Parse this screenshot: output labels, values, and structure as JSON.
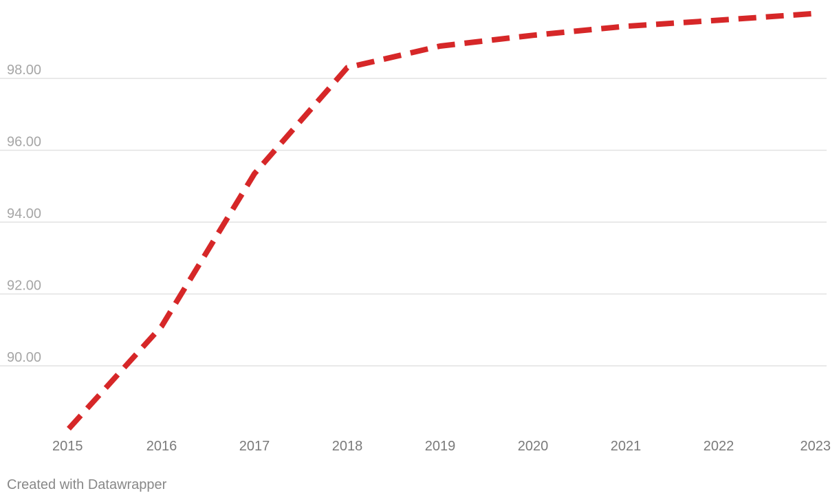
{
  "chart_data": {
    "type": "line",
    "x": [
      "2015",
      "2016",
      "2017",
      "2018",
      "2019",
      "2020",
      "2021",
      "2022",
      "2023"
    ],
    "series": [
      {
        "values": [
          88.25,
          91.1,
          95.35,
          98.3,
          98.9,
          99.2,
          99.45,
          99.62,
          99.8
        ],
        "color": "#d62728",
        "line_style": "dashed"
      }
    ],
    "y_ticks": [
      90,
      92,
      94,
      96,
      98
    ],
    "y_tick_labels": [
      "90.00",
      "92.00",
      "94.00",
      "96.00",
      "98.00"
    ],
    "x_tick_labels": [
      "2015",
      "2016",
      "2017",
      "2018",
      "2019",
      "2020",
      "2021",
      "2022",
      "2023"
    ],
    "ylim": [
      88.1,
      100.15
    ],
    "grid": true,
    "title": "",
    "xlabel": "",
    "ylabel": ""
  },
  "footer": {
    "credit": "Created with Datawrapper"
  },
  "colors": {
    "line": "#d62728",
    "grid": "#e2e2e2",
    "y_tick_text": "#a6a6a6",
    "x_tick_text": "#7a7a7a"
  }
}
